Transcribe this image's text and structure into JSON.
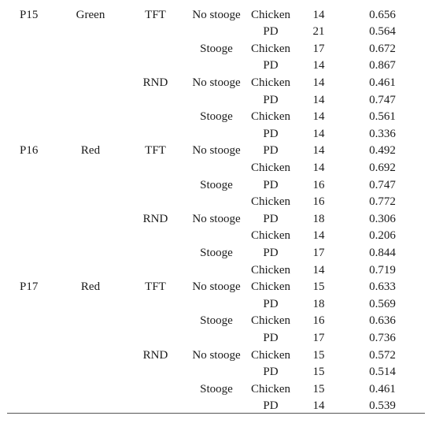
{
  "table": {
    "rows": [
      {
        "participant": "P15",
        "group": "Green",
        "strategy": "TFT",
        "stooge": "No stooge",
        "game": "Chicken",
        "n": "14",
        "value": "0.656"
      },
      {
        "participant": "",
        "group": "",
        "strategy": "",
        "stooge": "",
        "game": "PD",
        "n": "21",
        "value": "0.564"
      },
      {
        "participant": "",
        "group": "",
        "strategy": "",
        "stooge": "Stooge",
        "game": "Chicken",
        "n": "17",
        "value": "0.672"
      },
      {
        "participant": "",
        "group": "",
        "strategy": "",
        "stooge": "",
        "game": "PD",
        "n": "14",
        "value": "0.867"
      },
      {
        "participant": "",
        "group": "",
        "strategy": "RND",
        "stooge": "No stooge",
        "game": "Chicken",
        "n": "14",
        "value": "0.461"
      },
      {
        "participant": "",
        "group": "",
        "strategy": "",
        "stooge": "",
        "game": "PD",
        "n": "14",
        "value": "0.747"
      },
      {
        "participant": "",
        "group": "",
        "strategy": "",
        "stooge": "Stooge",
        "game": "Chicken",
        "n": "14",
        "value": "0.561"
      },
      {
        "participant": "",
        "group": "",
        "strategy": "",
        "stooge": "",
        "game": "PD",
        "n": "14",
        "value": "0.336"
      },
      {
        "participant": "P16",
        "group": "Red",
        "strategy": "TFT",
        "stooge": "No stooge",
        "game": "PD",
        "n": "14",
        "value": "0.492"
      },
      {
        "participant": "",
        "group": "",
        "strategy": "",
        "stooge": "",
        "game": "Chicken",
        "n": "14",
        "value": "0.692"
      },
      {
        "participant": "",
        "group": "",
        "strategy": "",
        "stooge": "Stooge",
        "game": "PD",
        "n": "16",
        "value": "0.747"
      },
      {
        "participant": "",
        "group": "",
        "strategy": "",
        "stooge": "",
        "game": "Chicken",
        "n": "16",
        "value": "0.772"
      },
      {
        "participant": "",
        "group": "",
        "strategy": "RND",
        "stooge": "No stooge",
        "game": "PD",
        "n": "18",
        "value": "0.306"
      },
      {
        "participant": "",
        "group": "",
        "strategy": "",
        "stooge": "",
        "game": "Chicken",
        "n": "14",
        "value": "0.206"
      },
      {
        "participant": "",
        "group": "",
        "strategy": "",
        "stooge": "Stooge",
        "game": "PD",
        "n": "17",
        "value": "0.844"
      },
      {
        "participant": "",
        "group": "",
        "strategy": "",
        "stooge": "",
        "game": "Chicken",
        "n": "14",
        "value": "0.719"
      },
      {
        "participant": "P17",
        "group": "Red",
        "strategy": "TFT",
        "stooge": "No stooge",
        "game": "Chicken",
        "n": "15",
        "value": "0.633"
      },
      {
        "participant": "",
        "group": "",
        "strategy": "",
        "stooge": "",
        "game": "PD",
        "n": "18",
        "value": "0.569"
      },
      {
        "participant": "",
        "group": "",
        "strategy": "",
        "stooge": "Stooge",
        "game": "Chicken",
        "n": "16",
        "value": "0.636"
      },
      {
        "participant": "",
        "group": "",
        "strategy": "",
        "stooge": "",
        "game": "PD",
        "n": "17",
        "value": "0.736"
      },
      {
        "participant": "",
        "group": "",
        "strategy": "RND",
        "stooge": "No stooge",
        "game": "Chicken",
        "n": "15",
        "value": "0.572"
      },
      {
        "participant": "",
        "group": "",
        "strategy": "",
        "stooge": "",
        "game": "PD",
        "n": "15",
        "value": "0.514"
      },
      {
        "participant": "",
        "group": "",
        "strategy": "",
        "stooge": "Stooge",
        "game": "Chicken",
        "n": "15",
        "value": "0.461"
      },
      {
        "participant": "",
        "group": "",
        "strategy": "",
        "stooge": "",
        "game": "PD",
        "n": "14",
        "value": "0.539"
      }
    ]
  }
}
